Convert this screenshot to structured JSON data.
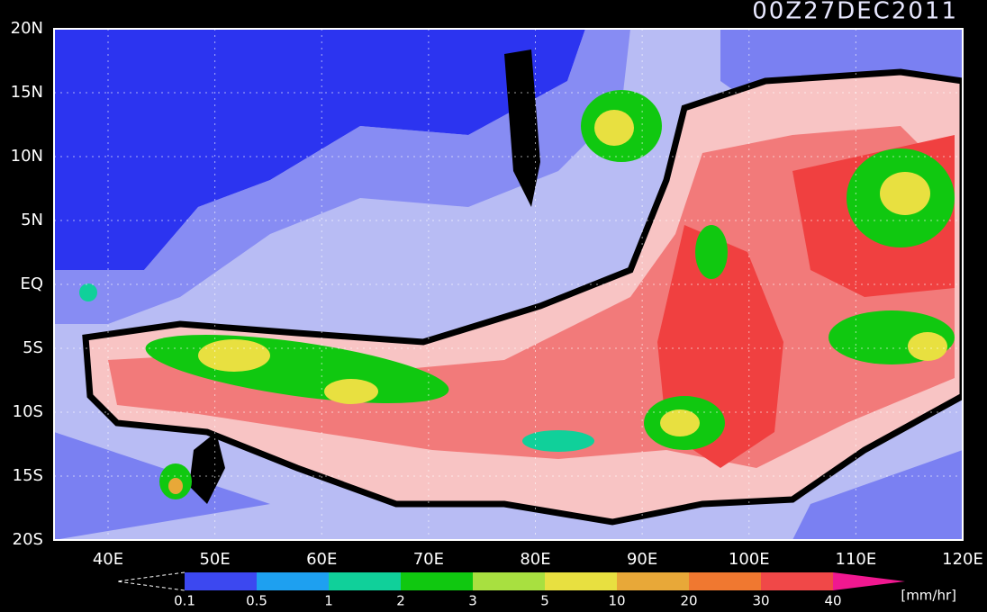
{
  "title": "00Z27DEC2011",
  "lat_labels": [
    "20N",
    "15N",
    "10N",
    "5N",
    "EQ",
    "5S",
    "10S",
    "15S",
    "20S"
  ],
  "lon_labels": [
    "40E",
    "50E",
    "60E",
    "70E",
    "80E",
    "90E",
    "100E",
    "110E",
    "120E"
  ],
  "colorbar": {
    "labels": [
      "0.1",
      "0.5",
      "1",
      "2",
      "3",
      "5",
      "10",
      "20",
      "30",
      "40"
    ],
    "colors": [
      "#3c48f0",
      "#1ea0f0",
      "#10d09a",
      "#10c810",
      "#a8e040",
      "#e8e040",
      "#e8a838",
      "#f07830",
      "#f04848",
      "#f01890"
    ],
    "unit": "[mm/hr]"
  }
}
